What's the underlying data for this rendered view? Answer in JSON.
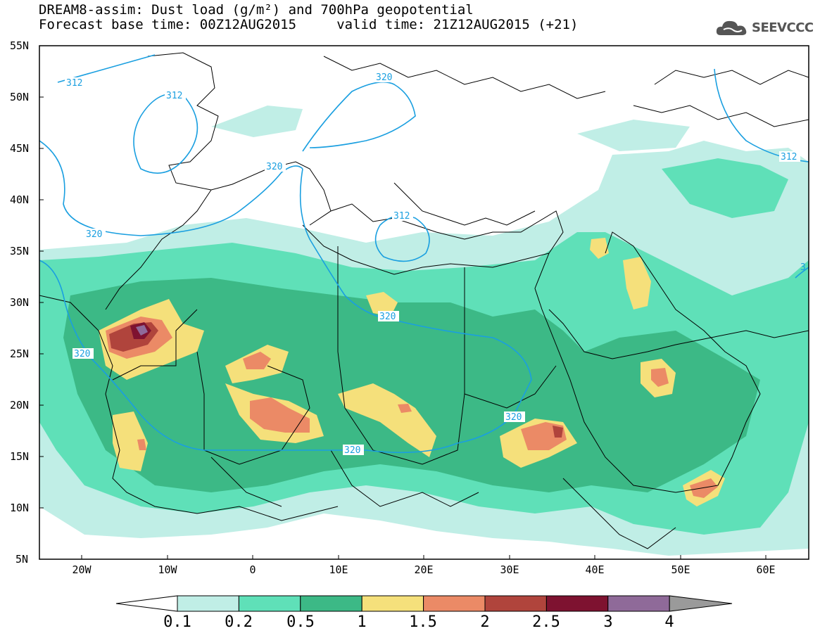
{
  "title": {
    "line1": "DREAM8-assim: Dust load (g/m²) and 700hPa geopotential",
    "line2": "Forecast base time: 00Z12AUG2015     valid time: 21Z12AUG2015 (+21)"
  },
  "logo": {
    "text": "SEEVCCC",
    "icon": "cloud-icon"
  },
  "map": {
    "lat_labels": [
      "55N",
      "50N",
      "45N",
      "40N",
      "35N",
      "30N",
      "25N",
      "20N",
      "15N",
      "10N",
      "5N"
    ],
    "lon_labels": [
      "20W",
      "10W",
      "0",
      "10E",
      "20E",
      "30E",
      "40E",
      "50E",
      "60E"
    ],
    "contour_labels": [
      "312",
      "312",
      "320",
      "320",
      "312",
      "320",
      "320",
      "320",
      "320",
      "312",
      "320",
      "3"
    ]
  },
  "colorbar": {
    "labels": [
      "0.1",
      "0.2",
      "0.5",
      "1",
      "1.5",
      "2",
      "2.5",
      "3",
      "4"
    ],
    "colors": [
      "#c0eee6",
      "#5fe0b8",
      "#3cb986",
      "#f5e07b",
      "#eb8a66",
      "#b0443c",
      "#7e1230",
      "#8f6a99"
    ],
    "under_color": "#ffffff",
    "over_color": "#9a9a9a"
  }
}
